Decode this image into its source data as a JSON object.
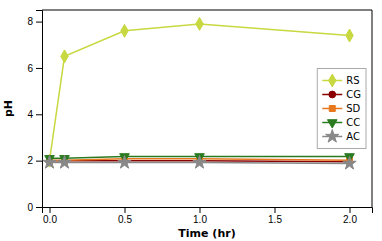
{
  "chart_data": {
    "type": "line",
    "x": [
      0.0,
      0.1,
      0.5,
      1.0,
      2.0
    ],
    "series": [
      {
        "name": "RS",
        "color": "#c8d840",
        "marker": "diamond",
        "line_style": "solid",
        "values": [
          2.0,
          6.5,
          7.6,
          7.9,
          7.4
        ]
      },
      {
        "name": "CG",
        "color": "#8b0000",
        "marker": "circle",
        "line_style": "solid",
        "values": [
          2.0,
          2.0,
          2.0,
          2.0,
          1.95
        ]
      },
      {
        "name": "SD",
        "color": "#e87820",
        "marker": "square",
        "line_style": "solid",
        "values": [
          2.02,
          2.02,
          2.08,
          2.08,
          2.02
        ]
      },
      {
        "name": "CC",
        "color": "#2a7a20",
        "marker": "triangle-down",
        "line_style": "solid",
        "values": [
          2.1,
          2.1,
          2.18,
          2.18,
          2.18
        ]
      },
      {
        "name": "AC",
        "color": "#888888",
        "marker": "star",
        "line_style": "solid",
        "values": [
          1.92,
          1.92,
          1.92,
          1.92,
          1.88
        ]
      }
    ],
    "xlabel": "Time (hr)",
    "ylabel": "pH",
    "xlim": [
      -0.05,
      2.15
    ],
    "ylim": [
      0,
      8.5
    ],
    "xticks": [
      {
        "value": 0.0,
        "label": "0.0"
      },
      0.5,
      {
        "value": 1.0,
        "label": "1.0"
      },
      1.5,
      {
        "value": 2.0,
        "label": "2.0"
      }
    ],
    "yticks": [
      0,
      2,
      4,
      6,
      8
    ],
    "grid": false,
    "legend": "right"
  }
}
